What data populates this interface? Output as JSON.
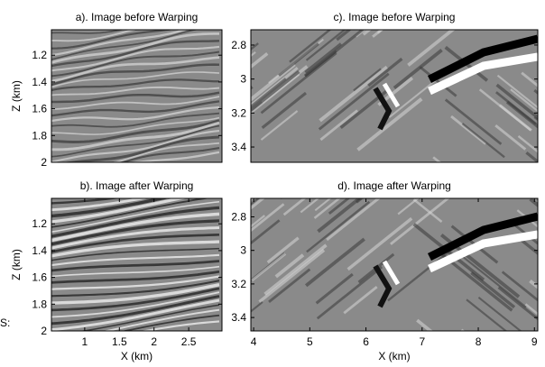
{
  "stray_text": "S:",
  "panels": [
    {
      "title": "a). Image before Warping",
      "ylabel": "Z (km)",
      "ylim": [
        1.01,
        2
      ],
      "yticks": [
        1.2,
        1.4,
        1.6,
        1.8,
        2
      ]
    },
    {
      "title": "c). Image before Warping",
      "ylim": [
        2.71,
        3.49
      ],
      "yticks": [
        2.8,
        3,
        3.2,
        3.4
      ]
    },
    {
      "title": "b). Image after Warping",
      "ylabel": "Z (km)",
      "xlabel": "X (km)",
      "ylim": [
        1.01,
        2
      ],
      "yticks": [
        1.2,
        1.4,
        1.6,
        1.8,
        2
      ],
      "xlim": [
        0.52,
        2.98
      ],
      "xticks": [
        1,
        1.5,
        2,
        2.5
      ]
    },
    {
      "title": "d). Image after Warping",
      "xlabel": "X (km)",
      "ylim": [
        2.69,
        3.48
      ],
      "yticks": [
        2.8,
        3,
        3.2,
        3.4
      ],
      "xlim": [
        3.95,
        9.06
      ],
      "xticks": [
        4,
        5,
        6,
        7,
        8,
        9
      ]
    }
  ]
}
